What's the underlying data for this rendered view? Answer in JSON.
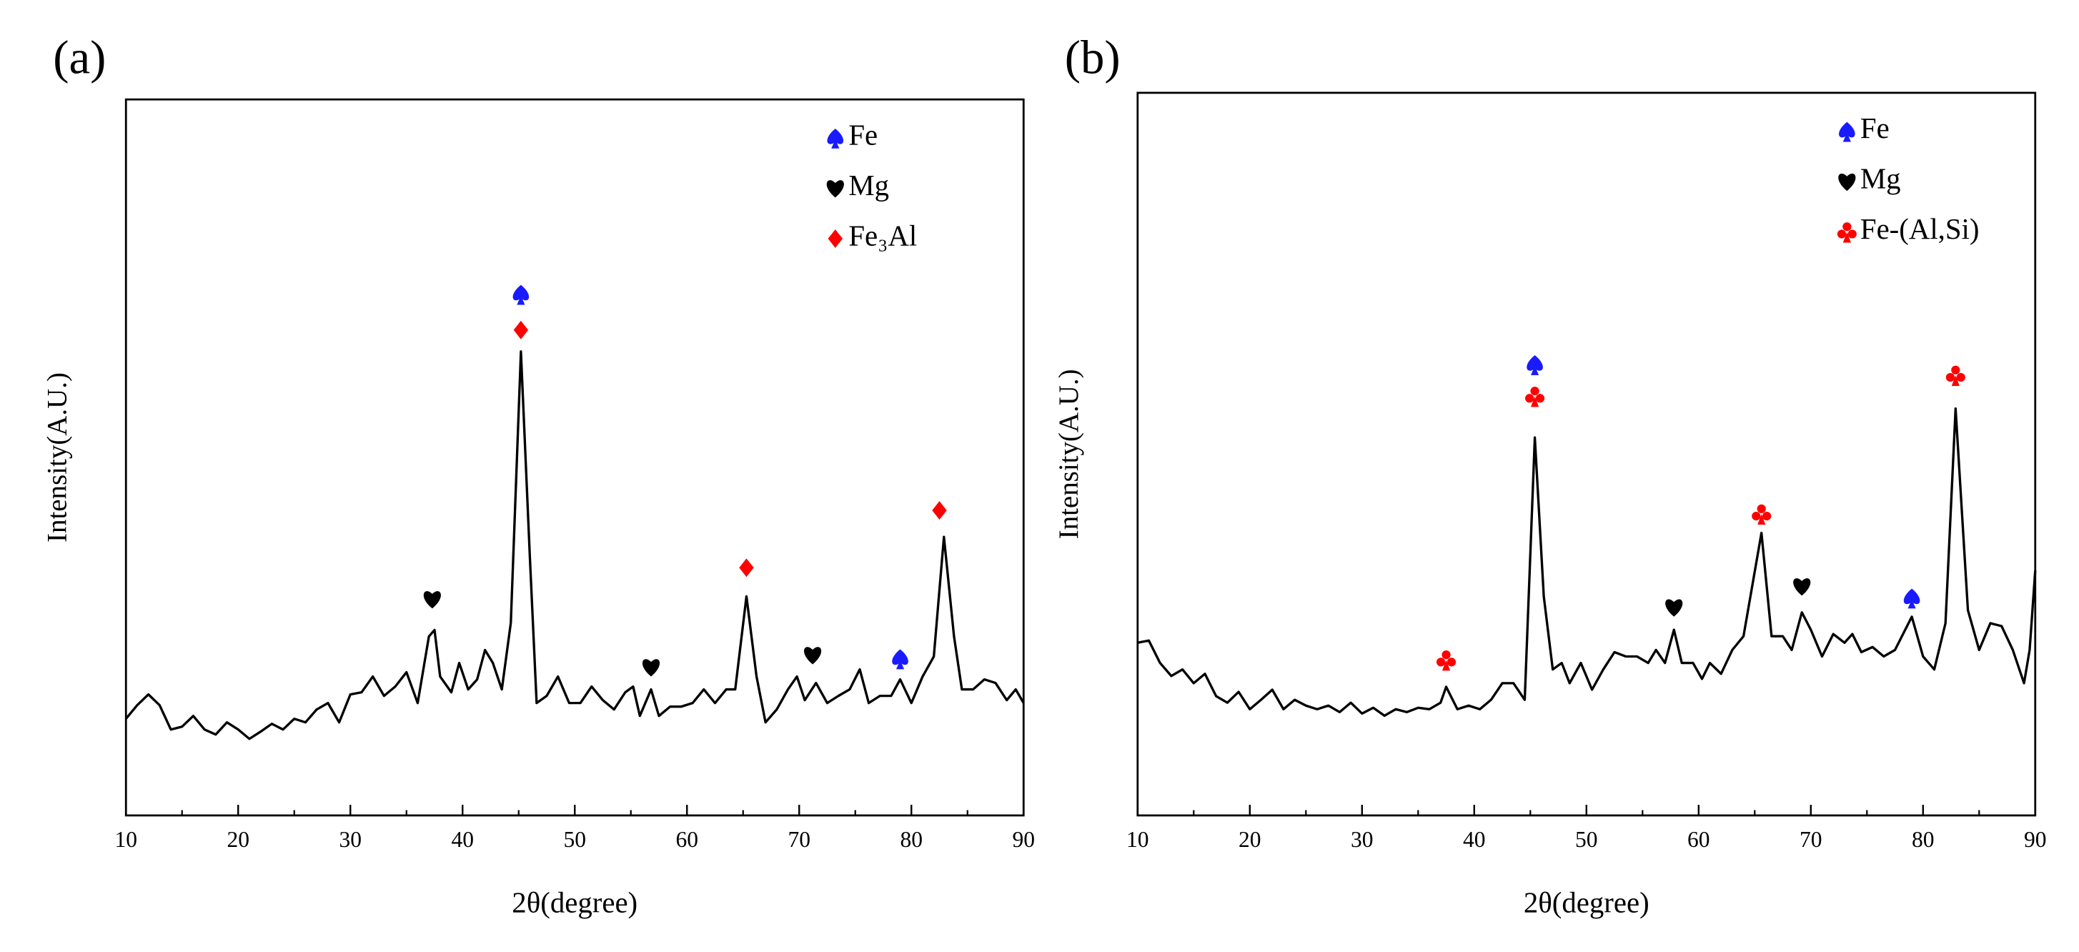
{
  "chart_data": [
    {
      "type": "line",
      "panel": "(a)",
      "xlabel": "2θ(degree)",
      "ylabel": "Intensity(A.U.)",
      "color": "#000000",
      "xlim": [
        10,
        90
      ],
      "xticks": [
        10,
        20,
        30,
        40,
        50,
        60,
        70,
        80,
        90
      ],
      "xminorticks": [
        15,
        25,
        35,
        45,
        55,
        65,
        75,
        85
      ],
      "ylim": [
        0,
        100
      ],
      "legend": "upper right",
      "x": [
        10,
        11,
        12,
        13,
        14,
        15,
        16,
        17,
        18,
        19,
        20,
        21,
        22,
        23,
        24,
        25,
        26,
        27,
        28,
        29,
        30,
        31,
        32,
        33,
        34,
        35,
        36,
        37,
        37.5,
        38,
        39,
        39.7,
        40.5,
        41.3,
        42,
        42.7,
        43.5,
        44.3,
        45.2,
        46,
        46.6,
        47.5,
        48.5,
        49.5,
        50.5,
        51.5,
        52.5,
        53.5,
        54.5,
        55.2,
        55.8,
        56.8,
        57.5,
        58.5,
        59.5,
        60.5,
        61.5,
        62.5,
        63.5,
        64.3,
        65.3,
        66.2,
        67,
        68,
        69,
        69.8,
        70.5,
        71.5,
        72.5,
        73.5,
        74.5,
        75.4,
        76.2,
        77.2,
        78.2,
        79,
        80,
        81,
        82,
        82.9,
        83.8,
        84.5,
        85.5,
        86.5,
        87.5,
        88.5,
        89.3,
        90
      ],
      "values": [
        13.5,
        15.4,
        16.9,
        15.4,
        12,
        12.4,
        13.9,
        12,
        11.3,
        13,
        12,
        10.7,
        11.7,
        12.8,
        12,
        13.5,
        13,
        14.8,
        15.7,
        13,
        16.9,
        17.2,
        19.4,
        16.7,
        18,
        20,
        15.7,
        25,
        25.9,
        19.4,
        17.2,
        21.3,
        17.6,
        19,
        23.1,
        21.3,
        17.6,
        26.9,
        64.8,
        36,
        15.7,
        16.7,
        19.4,
        15.7,
        15.7,
        18,
        16.1,
        14.8,
        17.2,
        18,
        13.9,
        17.6,
        13.9,
        15.2,
        15.2,
        15.7,
        17.6,
        15.7,
        17.6,
        17.6,
        30.6,
        19.4,
        13,
        14.8,
        17.6,
        19.4,
        16.1,
        18.5,
        15.7,
        16.7,
        17.6,
        20.4,
        15.7,
        16.7,
        16.7,
        19,
        15.7,
        19.4,
        22.2,
        38.9,
        25,
        17.6,
        17.6,
        19,
        18.5,
        16.1,
        17.6,
        15.7
      ],
      "phases": [
        {
          "name": "Fe",
          "symbol": "spade",
          "color": "#1a1aff",
          "points": [
            {
              "x": 45.2,
              "y": 72.8
            },
            {
              "x": 79,
              "y": 21.9
            }
          ]
        },
        {
          "name": "Mg",
          "symbol": "heart",
          "color": "#000000",
          "points": [
            {
              "x": 37.3,
              "y": 30.2
            },
            {
              "x": 56.8,
              "y": 20.7
            },
            {
              "x": 71.2,
              "y": 22.4
            }
          ]
        },
        {
          "name": "Fe₃Al",
          "symbol": "diamond",
          "color": "#ff0000",
          "points": [
            {
              "x": 45.2,
              "y": 67.8
            },
            {
              "x": 65.3,
              "y": 34.6
            },
            {
              "x": 82.5,
              "y": 42.6
            }
          ]
        }
      ]
    },
    {
      "type": "line",
      "panel": "(b)",
      "xlabel": "2θ(degree)",
      "ylabel": "Intensity(A.U.)",
      "color": "#000000",
      "xlim": [
        10,
        90
      ],
      "xticks": [
        10,
        20,
        30,
        40,
        50,
        60,
        70,
        80,
        90
      ],
      "xminorticks": [
        15,
        25,
        35,
        45,
        55,
        65,
        75,
        85
      ],
      "ylim": [
        0,
        100
      ],
      "legend": "upper right",
      "x": [
        10,
        11,
        12,
        13,
        14,
        15,
        16,
        17,
        18,
        19,
        20,
        21,
        22,
        23,
        24,
        25,
        26,
        27,
        28,
        29,
        30,
        31,
        32,
        33,
        34,
        35,
        36,
        37,
        37.5,
        38.5,
        39.5,
        40.5,
        41.5,
        42.5,
        43.5,
        44.5,
        45.4,
        46.2,
        47,
        47.8,
        48.5,
        49.5,
        50.5,
        51.5,
        52.5,
        53.5,
        54.5,
        55.5,
        56.2,
        57,
        57.8,
        58.5,
        59.5,
        60.3,
        61,
        62,
        63,
        64,
        65.6,
        66.5,
        67.5,
        68.3,
        69.2,
        70,
        71,
        72,
        73,
        73.7,
        74.5,
        75.5,
        76.5,
        77.5,
        79,
        80,
        81,
        82,
        82.9,
        84,
        85,
        86,
        87,
        88,
        89,
        89.5,
        90
      ],
      "values": [
        23.9,
        24.2,
        21.1,
        19.3,
        20.2,
        18.3,
        19.6,
        16.5,
        15.6,
        17.1,
        14.7,
        16,
        17.4,
        14.7,
        16,
        15.2,
        14.7,
        15.2,
        14.3,
        15.6,
        14.1,
        14.9,
        13.8,
        14.7,
        14.3,
        14.9,
        14.7,
        15.6,
        17.8,
        14.7,
        15.2,
        14.7,
        16,
        18.3,
        18.3,
        16,
        52.3,
        30.3,
        20.2,
        21.1,
        18.3,
        21.1,
        17.4,
        20.2,
        22.6,
        22,
        22,
        21.1,
        22.9,
        21.1,
        25.7,
        21.1,
        21.1,
        18.9,
        21.1,
        19.6,
        22.9,
        24.8,
        39.1,
        24.8,
        24.8,
        22.9,
        28.1,
        25.7,
        22,
        25.1,
        23.9,
        25.1,
        22.6,
        23.3,
        22,
        22.9,
        27.5,
        22,
        20.2,
        26.6,
        56.3,
        28.4,
        22.9,
        26.6,
        26.2,
        22.9,
        18.3,
        22.9,
        33.9
      ],
      "phases": [
        {
          "name": "Fe",
          "symbol": "spade",
          "color": "#1a1aff",
          "points": [
            {
              "x": 45.4,
              "y": 62.4
            },
            {
              "x": 79,
              "y": 30.1
            }
          ]
        },
        {
          "name": "Mg",
          "symbol": "heart",
          "color": "#000000",
          "points": [
            {
              "x": 57.8,
              "y": 28.8
            },
            {
              "x": 69.2,
              "y": 31.7
            }
          ]
        },
        {
          "name": "Fe-(Al,Si)",
          "symbol": "club",
          "color": "#ff0000",
          "points": [
            {
              "x": 37.5,
              "y": 21.5
            },
            {
              "x": 45.4,
              "y": 58
            },
            {
              "x": 65.6,
              "y": 41.7
            },
            {
              "x": 82.9,
              "y": 60.9
            }
          ]
        }
      ]
    }
  ]
}
